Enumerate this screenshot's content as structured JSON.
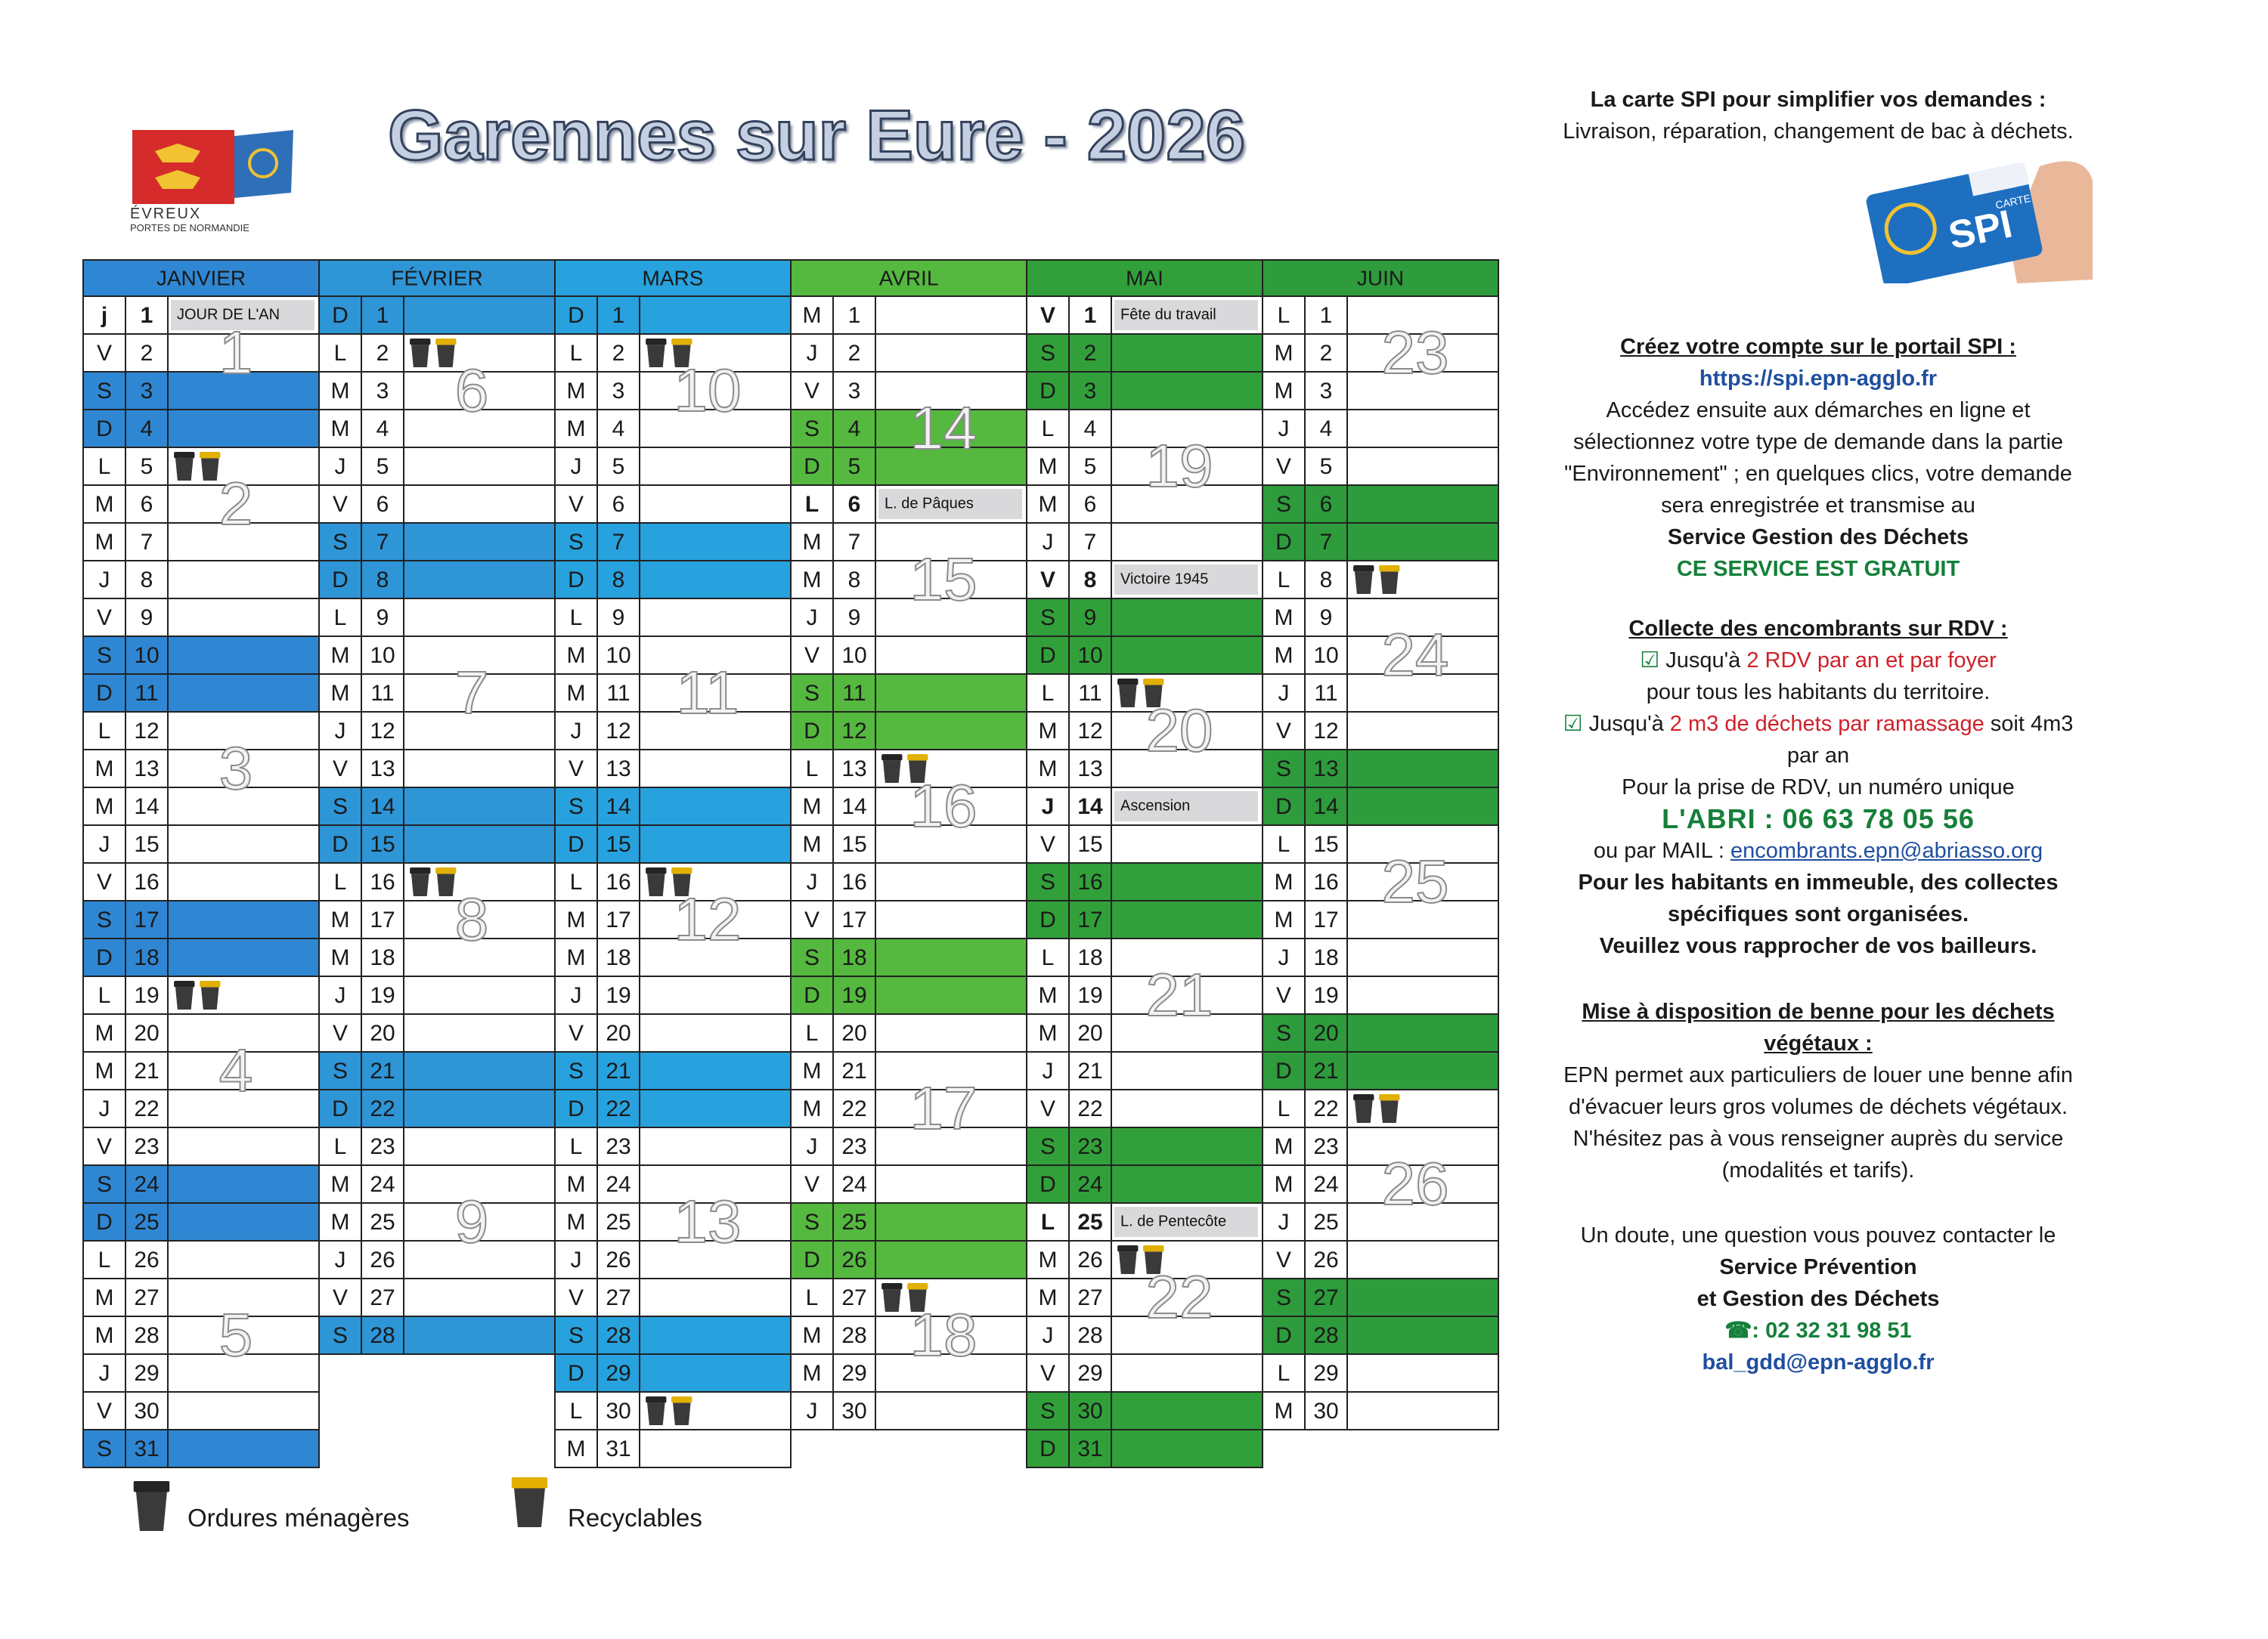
{
  "header": {
    "title": "Garennes sur Eure - 2026",
    "logo_line1": "ÉVREUX",
    "logo_line2": "PORTES DE NORMANDIE"
  },
  "calendar": {
    "months": [
      {
        "name": "JANVIER",
        "color": "#2f87d3",
        "days": [
          [
            "j",
            1,
            "JOUR DE L'AN"
          ],
          [
            "V",
            2
          ],
          [
            "S",
            3
          ],
          [
            "D",
            4
          ],
          [
            "L",
            5
          ],
          [
            "M",
            6
          ],
          [
            "M",
            7
          ],
          [
            "J",
            8
          ],
          [
            "V",
            9
          ],
          [
            "S",
            10
          ],
          [
            "D",
            11
          ],
          [
            "L",
            12
          ],
          [
            "M",
            13
          ],
          [
            "M",
            14
          ],
          [
            "J",
            15
          ],
          [
            "V",
            16
          ],
          [
            "S",
            17
          ],
          [
            "D",
            18
          ],
          [
            "L",
            19
          ],
          [
            "M",
            20
          ],
          [
            "M",
            21
          ],
          [
            "J",
            22
          ],
          [
            "V",
            23
          ],
          [
            "S",
            24
          ],
          [
            "D",
            25
          ],
          [
            "L",
            26
          ],
          [
            "M",
            27
          ],
          [
            "M",
            28
          ],
          [
            "J",
            29
          ],
          [
            "V",
            30
          ],
          [
            "S",
            31
          ]
        ],
        "bins": [
          5,
          19
        ],
        "weeks": [
          {
            "label": "1",
            "day": 2
          },
          {
            "label": "2",
            "day": 6
          },
          {
            "label": "3",
            "day": 13
          },
          {
            "label": "4",
            "day": 21
          },
          {
            "label": "5",
            "day": 28
          }
        ]
      },
      {
        "name": "FÉVRIER",
        "color": "#2e95d7",
        "days": [
          [
            "D",
            1
          ],
          [
            "L",
            2
          ],
          [
            "M",
            3
          ],
          [
            "M",
            4
          ],
          [
            "J",
            5
          ],
          [
            "V",
            6
          ],
          [
            "S",
            7
          ],
          [
            "D",
            8
          ],
          [
            "L",
            9
          ],
          [
            "M",
            10
          ],
          [
            "M",
            11
          ],
          [
            "J",
            12
          ],
          [
            "V",
            13
          ],
          [
            "S",
            14
          ],
          [
            "D",
            15
          ],
          [
            "L",
            16
          ],
          [
            "M",
            17
          ],
          [
            "M",
            18
          ],
          [
            "J",
            19
          ],
          [
            "V",
            20
          ],
          [
            "S",
            21
          ],
          [
            "D",
            22
          ],
          [
            "L",
            23
          ],
          [
            "M",
            24
          ],
          [
            "M",
            25
          ],
          [
            "J",
            26
          ],
          [
            "V",
            27
          ],
          [
            "S",
            28
          ]
        ],
        "bins": [
          2,
          16
        ],
        "weeks": [
          {
            "label": "6",
            "day": 3
          },
          {
            "label": "7",
            "day": 11
          },
          {
            "label": "8",
            "day": 17
          },
          {
            "label": "9",
            "day": 25
          }
        ]
      },
      {
        "name": "MARS",
        "color": "#27a2de",
        "days": [
          [
            "D",
            1
          ],
          [
            "L",
            2
          ],
          [
            "M",
            3
          ],
          [
            "M",
            4
          ],
          [
            "J",
            5
          ],
          [
            "V",
            6
          ],
          [
            "S",
            7
          ],
          [
            "D",
            8
          ],
          [
            "L",
            9
          ],
          [
            "M",
            10
          ],
          [
            "M",
            11
          ],
          [
            "J",
            12
          ],
          [
            "V",
            13
          ],
          [
            "S",
            14
          ],
          [
            "D",
            15
          ],
          [
            "L",
            16
          ],
          [
            "M",
            17
          ],
          [
            "M",
            18
          ],
          [
            "J",
            19
          ],
          [
            "V",
            20
          ],
          [
            "S",
            21
          ],
          [
            "D",
            22
          ],
          [
            "L",
            23
          ],
          [
            "M",
            24
          ],
          [
            "M",
            25
          ],
          [
            "J",
            26
          ],
          [
            "V",
            27
          ],
          [
            "S",
            28
          ],
          [
            "D",
            29
          ],
          [
            "L",
            30
          ],
          [
            "M",
            31
          ]
        ],
        "bins": [
          2,
          16,
          30
        ],
        "weeks": [
          {
            "label": "10",
            "day": 3
          },
          {
            "label": "11",
            "day": 11
          },
          {
            "label": "12",
            "day": 17
          },
          {
            "label": "13",
            "day": 25
          }
        ]
      },
      {
        "name": "AVRIL",
        "color": "#55b83f",
        "days": [
          [
            "M",
            1
          ],
          [
            "J",
            2
          ],
          [
            "V",
            3
          ],
          [
            "S",
            4
          ],
          [
            "D",
            5
          ],
          [
            "L",
            6,
            "L. de Pâques"
          ],
          [
            "M",
            7
          ],
          [
            "M",
            8
          ],
          [
            "J",
            9
          ],
          [
            "V",
            10
          ],
          [
            "S",
            11
          ],
          [
            "D",
            12
          ],
          [
            "L",
            13
          ],
          [
            "M",
            14
          ],
          [
            "M",
            15
          ],
          [
            "J",
            16
          ],
          [
            "V",
            17
          ],
          [
            "S",
            18
          ],
          [
            "D",
            19
          ],
          [
            "L",
            20
          ],
          [
            "M",
            21
          ],
          [
            "M",
            22
          ],
          [
            "J",
            23
          ],
          [
            "V",
            24
          ],
          [
            "S",
            25
          ],
          [
            "D",
            26
          ],
          [
            "L",
            27
          ],
          [
            "M",
            28
          ],
          [
            "M",
            29
          ],
          [
            "J",
            30
          ]
        ],
        "bins": [
          13,
          27
        ],
        "weeks": [
          {
            "label": "14",
            "day": 4
          },
          {
            "label": "15",
            "day": 8
          },
          {
            "label": "16",
            "day": 14
          },
          {
            "label": "17",
            "day": 22
          },
          {
            "label": "18",
            "day": 28
          }
        ]
      },
      {
        "name": "MAI",
        "color": "#32a03a",
        "days": [
          [
            "V",
            1,
            "Fête du travail"
          ],
          [
            "S",
            2
          ],
          [
            "D",
            3
          ],
          [
            "L",
            4
          ],
          [
            "M",
            5
          ],
          [
            "M",
            6
          ],
          [
            "J",
            7
          ],
          [
            "V",
            8,
            "Victoire 1945"
          ],
          [
            "S",
            9
          ],
          [
            "D",
            10
          ],
          [
            "L",
            11
          ],
          [
            "M",
            12
          ],
          [
            "M",
            13
          ],
          [
            "J",
            14,
            "Ascension"
          ],
          [
            "V",
            15
          ],
          [
            "S",
            16
          ],
          [
            "D",
            17
          ],
          [
            "L",
            18
          ],
          [
            "M",
            19
          ],
          [
            "M",
            20
          ],
          [
            "J",
            21
          ],
          [
            "V",
            22
          ],
          [
            "S",
            23
          ],
          [
            "D",
            24
          ],
          [
            "L",
            25,
            "L. de Pentecôte"
          ],
          [
            "M",
            26
          ],
          [
            "M",
            27
          ],
          [
            "J",
            28
          ],
          [
            "V",
            29
          ],
          [
            "S",
            30
          ],
          [
            "D",
            31
          ]
        ],
        "bins": [
          11,
          26
        ],
        "weeks": [
          {
            "label": "19",
            "day": 5
          },
          {
            "label": "20",
            "day": 12
          },
          {
            "label": "21",
            "day": 19
          },
          {
            "label": "22",
            "day": 27
          }
        ]
      },
      {
        "name": "JUIN",
        "color": "#2e9b3c",
        "days": [
          [
            "L",
            1
          ],
          [
            "M",
            2
          ],
          [
            "M",
            3
          ],
          [
            "J",
            4
          ],
          [
            "V",
            5
          ],
          [
            "S",
            6
          ],
          [
            "D",
            7
          ],
          [
            "L",
            8
          ],
          [
            "M",
            9
          ],
          [
            "M",
            10
          ],
          [
            "J",
            11
          ],
          [
            "V",
            12
          ],
          [
            "S",
            13
          ],
          [
            "D",
            14
          ],
          [
            "L",
            15
          ],
          [
            "M",
            16
          ],
          [
            "M",
            17
          ],
          [
            "J",
            18
          ],
          [
            "V",
            19
          ],
          [
            "S",
            20
          ],
          [
            "D",
            21
          ],
          [
            "L",
            22
          ],
          [
            "M",
            23
          ],
          [
            "M",
            24
          ],
          [
            "J",
            25
          ],
          [
            "V",
            26
          ],
          [
            "S",
            27
          ],
          [
            "D",
            28
          ],
          [
            "L",
            29
          ],
          [
            "M",
            30
          ]
        ],
        "bins": [
          8,
          22
        ],
        "weeks": [
          {
            "label": "23",
            "day": 2
          },
          {
            "label": "24",
            "day": 10
          },
          {
            "label": "25",
            "day": 16
          },
          {
            "label": "26",
            "day": 24
          }
        ]
      }
    ]
  },
  "legend": {
    "ordures": "Ordures ménagères",
    "recyclables": "Recyclables"
  },
  "info": {
    "card": {
      "brand": "SPI",
      "small": "CARTE"
    },
    "sections": [
      [
        [
          {
            "text": "La carte SPI pour simplifier vos demandes :",
            "style": "b"
          }
        ],
        [
          {
            "text": "Livraison, réparation, changement de bac à déchets."
          }
        ]
      ],
      [
        [
          {
            "text": "Créez votre compte sur le portail SPI :",
            "style": "b u"
          }
        ],
        [
          {
            "text": "https://spi.epn-agglo.fr",
            "style": "b blue"
          }
        ],
        [
          {
            "text": "Accédez ensuite aux démarches en ligne et"
          }
        ],
        [
          {
            "text": "sélectionnez votre type de demande dans la partie"
          }
        ],
        [
          {
            "text": "\"Environnement\" ; en quelques clics, votre demande"
          }
        ],
        [
          {
            "text": "sera enregistrée et transmise au"
          }
        ],
        [
          {
            "text": "Service Gestion des Déchets",
            "style": "b"
          }
        ],
        [
          {
            "text": "CE SERVICE EST GRATUIT",
            "style": "b green"
          }
        ]
      ],
      [
        [
          {
            "text": "Collecte des encombrants sur RDV :",
            "style": "b u"
          }
        ],
        [
          {
            "text": "☑",
            "style": "green"
          },
          {
            "text": " Jusqu'à "
          },
          {
            "text": "2 RDV par an et par foyer",
            "style": "red"
          }
        ],
        [
          {
            "text": "pour tous les habitants du territoire."
          }
        ],
        [
          {
            "text": "☑",
            "style": "green"
          },
          {
            "text": " Jusqu'à "
          },
          {
            "text": "2 m3 de déchets par ramassage",
            "style": "red"
          },
          {
            "text": " soit 4m3"
          }
        ],
        [
          {
            "text": "par an"
          }
        ],
        [
          {
            "text": "Pour la prise de RDV, un numéro unique"
          }
        ],
        [
          {
            "text": "L'ABRI : 06 63 78 05 56",
            "style": "b green big"
          }
        ],
        [
          {
            "text": "ou par  MAIL : "
          },
          {
            "text": "encombrants.epn@abriasso.org",
            "style": "link"
          }
        ],
        [
          {
            "text": "Pour les habitants en immeuble, des collectes",
            "style": "b"
          }
        ],
        [
          {
            "text": "spécifiques sont organisées.",
            "style": "b"
          }
        ],
        [
          {
            "text": "Veuillez vous rapprocher de vos bailleurs.",
            "style": "b"
          }
        ]
      ],
      [
        [
          {
            "text": "Mise à disposition de benne pour les déchets",
            "style": "b u"
          }
        ],
        [
          {
            "text": "végétaux :",
            "style": "b u"
          }
        ],
        [
          {
            "text": "EPN permet aux particuliers de louer une benne afin"
          }
        ],
        [
          {
            "text": "d'évacuer leurs gros volumes de déchets végétaux."
          }
        ],
        [
          {
            "text": "N'hésitez pas à vous renseigner auprès du service"
          }
        ],
        [
          {
            "text": "(modalités et tarifs)."
          }
        ]
      ],
      [
        [
          {
            "text": "Un doute, une question vous pouvez contacter le"
          }
        ],
        [
          {
            "text": "Service Prévention",
            "style": "b"
          }
        ],
        [
          {
            "text": "et Gestion des Déchets",
            "style": "b"
          }
        ],
        [
          {
            "text": "☎: 02 32 31 98 51",
            "style": "b green"
          }
        ],
        [
          {
            "text": "bal_gdd@epn-agglo.fr",
            "style": "b blue"
          }
        ]
      ]
    ]
  }
}
